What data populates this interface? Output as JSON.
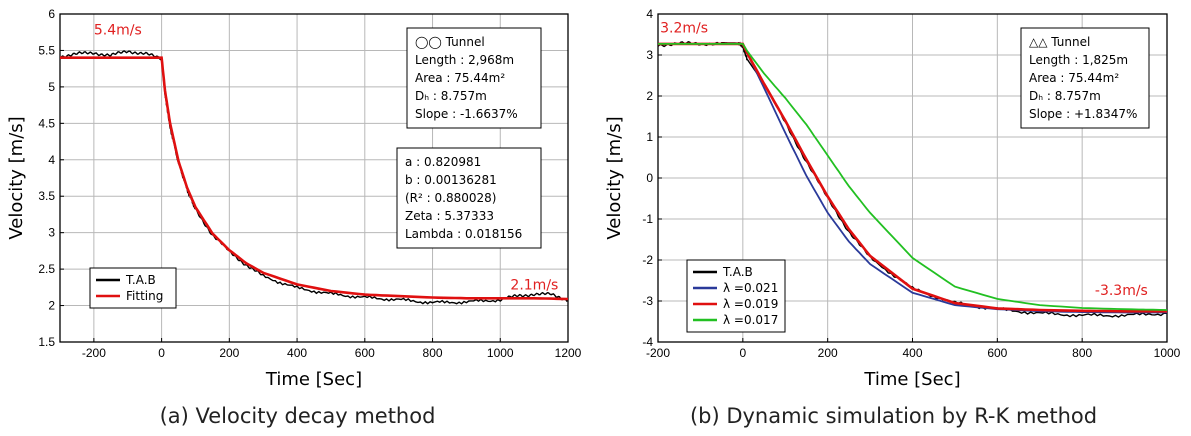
{
  "chart_data": [
    {
      "type": "line",
      "caption": "(a) Velocity decay method",
      "xlabel": "Time [Sec]",
      "ylabel": "Velocity [m/s]",
      "xlim": [
        -300,
        1200
      ],
      "ylim": [
        1.5,
        6
      ],
      "xticks": [
        -200,
        0,
        200,
        400,
        600,
        800,
        1000,
        1200
      ],
      "yticks": [
        1.5,
        2,
        2.5,
        3,
        3.5,
        4,
        4.5,
        5,
        5.5,
        6
      ],
      "ytick_labels": [
        "1.5",
        "2",
        "2.5",
        "3",
        "3.5",
        "4",
        "4.5",
        "5",
        "5.5",
        "6"
      ],
      "grid": true,
      "legend_position": "bottom-left",
      "series": [
        {
          "name": "T.A.B",
          "color": "#000000",
          "x": [
            -300,
            -250,
            -200,
            -150,
            -100,
            -50,
            0,
            10,
            25,
            50,
            75,
            100,
            150,
            200,
            250,
            300,
            400,
            500,
            600,
            700,
            800,
            900,
            1000,
            1050,
            1100,
            1150,
            1200
          ],
          "y": [
            5.42,
            5.45,
            5.47,
            5.43,
            5.49,
            5.46,
            5.38,
            4.9,
            4.45,
            3.95,
            3.6,
            3.32,
            2.97,
            2.74,
            2.56,
            2.4,
            2.24,
            2.16,
            2.11,
            2.08,
            2.04,
            2.05,
            2.08,
            2.13,
            2.16,
            2.15,
            2.08
          ]
        },
        {
          "name": "Fitting",
          "color": "#e01010",
          "x": [
            -300,
            -200,
            -100,
            0,
            10,
            25,
            50,
            75,
            100,
            150,
            200,
            250,
            300,
            400,
            500,
            600,
            700,
            800,
            900,
            1000,
            1100,
            1200
          ],
          "y": [
            5.4,
            5.4,
            5.4,
            5.4,
            4.95,
            4.5,
            3.98,
            3.62,
            3.35,
            2.99,
            2.76,
            2.58,
            2.45,
            2.29,
            2.2,
            2.15,
            2.13,
            2.11,
            2.1,
            2.1,
            2.1,
            2.09
          ]
        }
      ],
      "annotations": [
        {
          "text": "5.4m∕s",
          "x": -200,
          "y": 5.72
        },
        {
          "text": "2.1m∕s",
          "x": 1030,
          "y": 2.22
        }
      ],
      "info_box": {
        "lines": [
          "◯◯ Tunnel",
          "Length : 2,968m",
          "Area : 75.44m²",
          "Dₕ : 8.757m",
          "Slope : -1.6637%"
        ]
      },
      "fit_box": {
        "lines": [
          "a : 0.820981",
          "b : 0.00136281",
          "(R² : 0.880028)",
          "Zeta : 5.37333",
          "Lambda : 0.018156"
        ]
      }
    },
    {
      "type": "line",
      "caption": "(b) Dynamic simulation by R-K method",
      "xlabel": "Time [Sec]",
      "ylabel": "Velocity [m/s]",
      "xlim": [
        -200,
        1000
      ],
      "ylim": [
        -4,
        4
      ],
      "xticks": [
        -200,
        0,
        200,
        400,
        600,
        800,
        1000
      ],
      "yticks": [
        -4,
        -3,
        -2,
        -1,
        0,
        1,
        2,
        3,
        4
      ],
      "ytick_labels": [
        "-4",
        "-3",
        "-2",
        "-1",
        "0",
        "1",
        "2",
        "3",
        "4"
      ],
      "grid": true,
      "legend_position": "bottom-left",
      "series": [
        {
          "name": "T.A.B",
          "color": "#000000",
          "x": [
            -200,
            -150,
            -100,
            -50,
            -10,
            0,
            10,
            50,
            100,
            150,
            200,
            250,
            300,
            400,
            500,
            600,
            700,
            800,
            900,
            1000
          ],
          "y": [
            3.25,
            3.28,
            3.27,
            3.3,
            3.29,
            3.2,
            2.9,
            2.3,
            1.35,
            0.4,
            -0.5,
            -1.3,
            -1.95,
            -2.7,
            -3.05,
            -3.2,
            -3.3,
            -3.35,
            -3.35,
            -3.3
          ]
        },
        {
          "name": "λ =0.021",
          "color": "#2a3a9a",
          "x": [
            -200,
            0,
            10,
            50,
            100,
            150,
            200,
            250,
            300,
            400,
            500,
            600,
            700,
            800,
            900,
            1000
          ],
          "y": [
            3.27,
            3.27,
            3.05,
            2.2,
            1.1,
            0.05,
            -0.85,
            -1.55,
            -2.1,
            -2.8,
            -3.1,
            -3.2,
            -3.25,
            -3.27,
            -3.28,
            -3.28
          ]
        },
        {
          "name": "λ =0.019",
          "color": "#e01010",
          "x": [
            -200,
            0,
            10,
            50,
            100,
            150,
            200,
            250,
            300,
            400,
            500,
            600,
            700,
            800,
            900,
            1000
          ],
          "y": [
            3.27,
            3.27,
            3.05,
            2.3,
            1.4,
            0.45,
            -0.45,
            -1.25,
            -1.9,
            -2.7,
            -3.05,
            -3.18,
            -3.22,
            -3.24,
            -3.25,
            -3.25
          ]
        },
        {
          "name": "λ =0.017",
          "color": "#22c022",
          "x": [
            -200,
            0,
            10,
            50,
            100,
            150,
            200,
            250,
            300,
            400,
            500,
            600,
            700,
            800,
            900,
            1000
          ],
          "y": [
            3.27,
            3.27,
            3.1,
            2.55,
            1.95,
            1.3,
            0.55,
            -0.2,
            -0.85,
            -1.95,
            -2.65,
            -2.95,
            -3.1,
            -3.17,
            -3.2,
            -3.22
          ]
        }
      ],
      "annotations": [
        {
          "text": "3.2m∕s",
          "x": -195,
          "y": 3.55
        },
        {
          "text": "-3.3m∕s",
          "x": 830,
          "y": -2.85
        }
      ],
      "info_box": {
        "lines": [
          "△△ Tunnel",
          "Length : 1,825m",
          "Area : 75.44m²",
          "Dₕ : 8.757m",
          "Slope : +1.8347%"
        ]
      }
    }
  ]
}
